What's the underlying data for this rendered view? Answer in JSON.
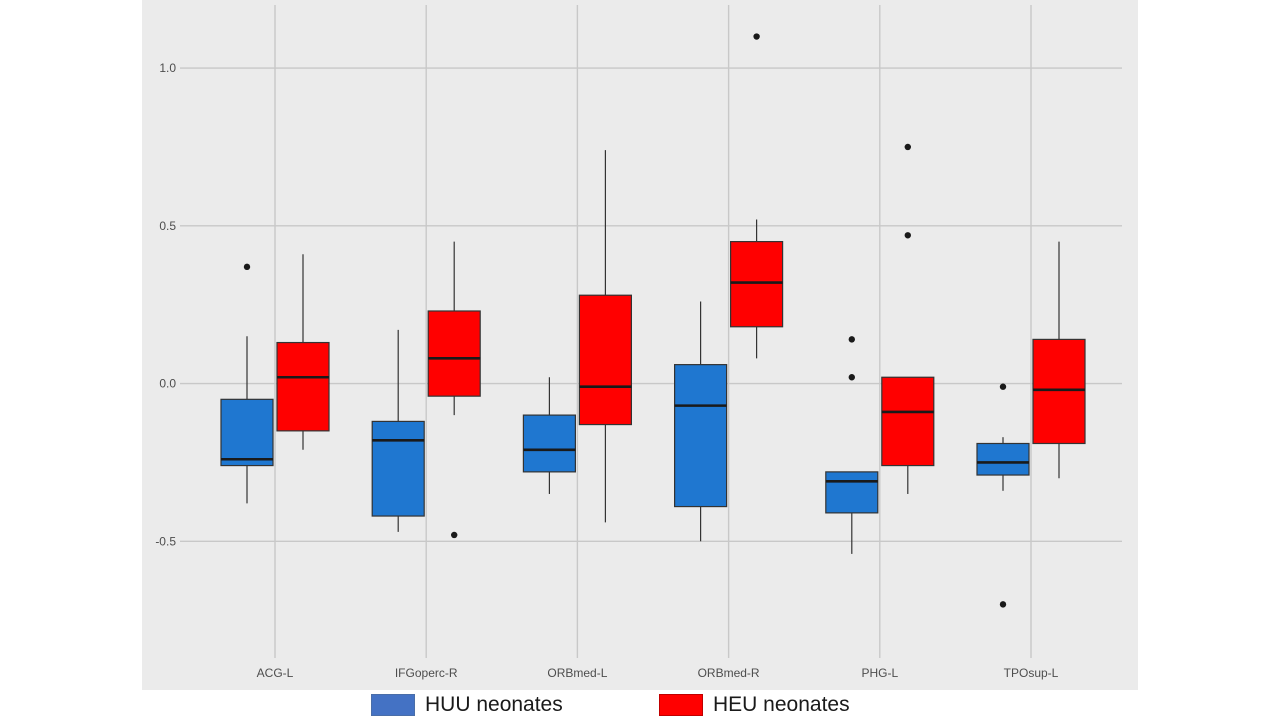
{
  "chart_data": {
    "type": "boxplot",
    "title": "",
    "xlabel": "",
    "ylabel": "",
    "ylim": [
      -0.87,
      1.2
    ],
    "yticks": [
      -0.5,
      0.0,
      0.5,
      1.0
    ],
    "ytick_labels": [
      "-0.5",
      "0.0",
      "0.5",
      "1.0"
    ],
    "categories": [
      "ACG-L",
      "IFGoperc-R",
      "ORBmed-L",
      "ORBmed-R",
      "PHG-L",
      "TPOsup-L"
    ],
    "grid": true,
    "legend_position": "bottom",
    "series": [
      {
        "name": "HUU neonates",
        "color": "#1f77d0",
        "boxes": [
          {
            "whisker_low": -0.38,
            "q1": -0.26,
            "median": -0.24,
            "q3": -0.05,
            "whisker_high": 0.15,
            "outliers": [
              0.37
            ]
          },
          {
            "whisker_low": -0.47,
            "q1": -0.42,
            "median": -0.18,
            "q3": -0.12,
            "whisker_high": 0.17,
            "outliers": []
          },
          {
            "whisker_low": -0.35,
            "q1": -0.28,
            "median": -0.21,
            "q3": -0.1,
            "whisker_high": 0.02,
            "outliers": []
          },
          {
            "whisker_low": -0.5,
            "q1": -0.39,
            "median": -0.07,
            "q3": 0.06,
            "whisker_high": 0.26,
            "outliers": []
          },
          {
            "whisker_low": -0.54,
            "q1": -0.41,
            "median": -0.31,
            "q3": -0.28,
            "whisker_high": -0.28,
            "outliers": [
              0.14,
              0.02
            ]
          },
          {
            "whisker_low": -0.34,
            "q1": -0.29,
            "median": -0.25,
            "q3": -0.19,
            "whisker_high": -0.17,
            "outliers": [
              -0.01,
              -0.7
            ]
          }
        ]
      },
      {
        "name": "HEU neonates",
        "color": "#ff0000",
        "boxes": [
          {
            "whisker_low": -0.21,
            "q1": -0.15,
            "median": 0.02,
            "q3": 0.13,
            "whisker_high": 0.41,
            "outliers": []
          },
          {
            "whisker_low": -0.1,
            "q1": -0.04,
            "median": 0.08,
            "q3": 0.23,
            "whisker_high": 0.45,
            "outliers": [
              -0.48
            ]
          },
          {
            "whisker_low": -0.44,
            "q1": -0.13,
            "median": -0.01,
            "q3": 0.28,
            "whisker_high": 0.74,
            "outliers": []
          },
          {
            "whisker_low": 0.08,
            "q1": 0.18,
            "median": 0.32,
            "q3": 0.45,
            "whisker_high": 0.52,
            "outliers": [
              1.1
            ]
          },
          {
            "whisker_low": -0.35,
            "q1": -0.26,
            "median": -0.09,
            "q3": 0.02,
            "whisker_high": 0.02,
            "outliers": [
              0.75,
              0.47
            ]
          },
          {
            "whisker_low": -0.3,
            "q1": -0.19,
            "median": -0.02,
            "q3": 0.14,
            "whisker_high": 0.45,
            "outliers": []
          }
        ]
      }
    ]
  },
  "legend": [
    {
      "label": "HUU neonates",
      "color": "#4472c4"
    },
    {
      "label": "HEU neonates",
      "color": "#ff0000"
    }
  ]
}
